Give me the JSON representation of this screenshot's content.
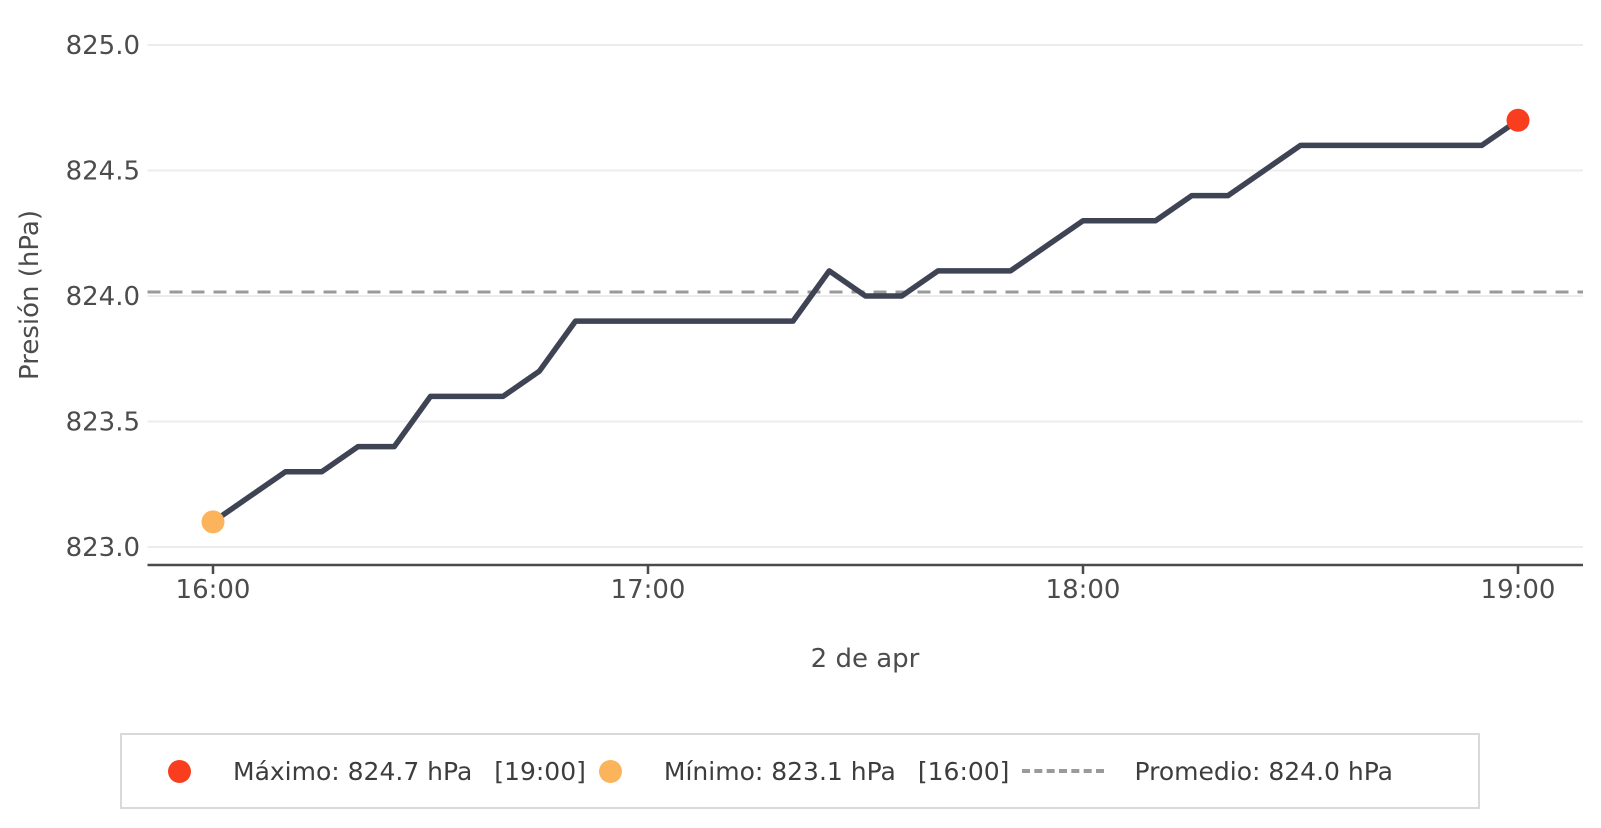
{
  "chart_data": {
    "type": "line",
    "title": "",
    "xlabel": "2 de apr",
    "ylabel": "Presión (hPa)",
    "series_name": "Presión",
    "x": [
      "16:00",
      "16:05",
      "16:10",
      "16:15",
      "16:20",
      "16:25",
      "16:30",
      "16:35",
      "16:40",
      "16:45",
      "16:50",
      "16:55",
      "17:00",
      "17:05",
      "17:10",
      "17:15",
      "17:20",
      "17:25",
      "17:30",
      "17:35",
      "17:40",
      "17:45",
      "17:50",
      "17:55",
      "18:00",
      "18:05",
      "18:10",
      "18:15",
      "18:20",
      "18:25",
      "18:30",
      "18:35",
      "18:40",
      "18:45",
      "18:50",
      "18:55",
      "19:00"
    ],
    "values": [
      823.1,
      823.2,
      823.3,
      823.3,
      823.4,
      823.4,
      823.6,
      823.6,
      823.6,
      823.7,
      823.9,
      823.9,
      823.9,
      823.9,
      823.9,
      823.9,
      823.9,
      824.1,
      824.0,
      824.0,
      824.1,
      824.1,
      824.1,
      824.2,
      824.3,
      824.3,
      824.3,
      824.4,
      824.4,
      824.5,
      824.6,
      824.6,
      824.6,
      824.6,
      824.6,
      824.6,
      824.7
    ],
    "y_ticks": [
      825.0,
      824.5,
      824.0,
      823.5,
      823.0
    ],
    "y_tick_labels": [
      "825.0",
      "824.5",
      "824.0",
      "823.5",
      "823.0"
    ],
    "x_tick_labels": [
      "16:00",
      "17:00",
      "18:00",
      "19:00"
    ],
    "ylim": [
      822.92,
      825.12
    ],
    "grid": "horizontal",
    "legend_position": "bottom",
    "line_color": "#3f4455",
    "grid_color": "#ececec",
    "axis_color": "#4a4a4a",
    "max": {
      "value": 824.7,
      "time": "19:00",
      "color": "#f93e20"
    },
    "min": {
      "value": 823.1,
      "time": "16:00",
      "color": "#fbb45c"
    },
    "average": {
      "value": 824.016,
      "display": "824.0",
      "color": "#9a9a9a"
    }
  },
  "legend": {
    "items": [
      {
        "label": "Máximo: 824.7 hPa",
        "time": "[19:00]",
        "swatch": "dot",
        "color": "#f93e20"
      },
      {
        "label": "Mínimo: 823.1 hPa",
        "time": "[16:00]",
        "swatch": "dot",
        "color": "#fbb45c"
      },
      {
        "label": "Promedio: 824.0 hPa",
        "time": "",
        "swatch": "dash",
        "color": "#9a9a9a"
      }
    ]
  }
}
